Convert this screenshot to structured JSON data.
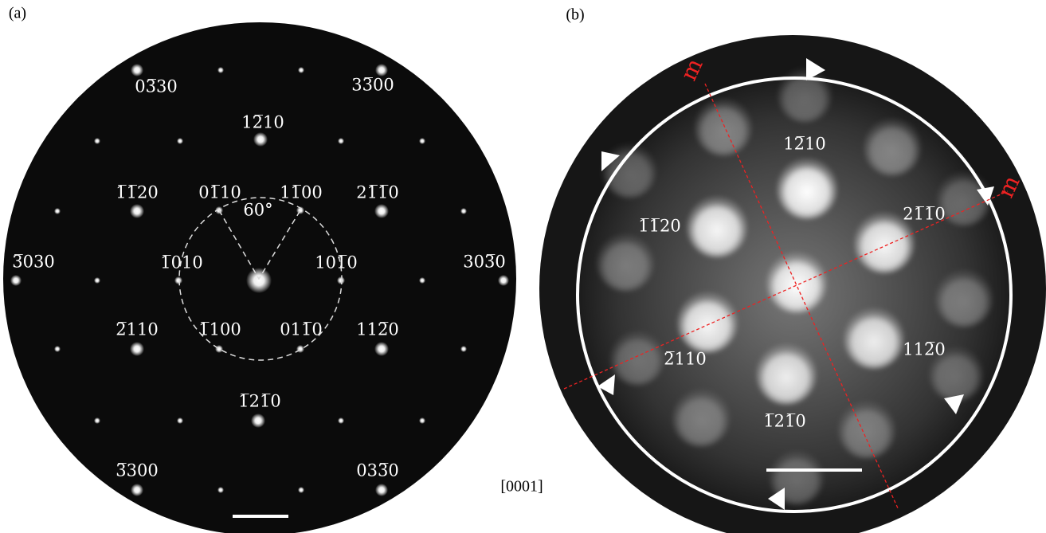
{
  "panel_a": {
    "label": "(a)",
    "angle": "60°",
    "spots": [
      "03̅30",
      "33̅00",
      "12̅10",
      "1̅1̅20",
      "01̅10",
      "11̅00",
      "21̅1̅0",
      "3̅030",
      "1̅010",
      "101̅0",
      "303̅0",
      "2̅110",
      "1̅100",
      "011̅0",
      "112̅0",
      "1̅21̅0",
      "3̅300",
      "033̅0"
    ]
  },
  "panel_b": {
    "label": "(b)",
    "mirrors": [
      "m",
      "m"
    ],
    "spots": [
      "12̅10",
      "1̅1̅20",
      "21̅1̅0",
      "2̅110",
      "112̅0",
      "1̅21̅0"
    ]
  },
  "zone_axis": "[0001]"
}
